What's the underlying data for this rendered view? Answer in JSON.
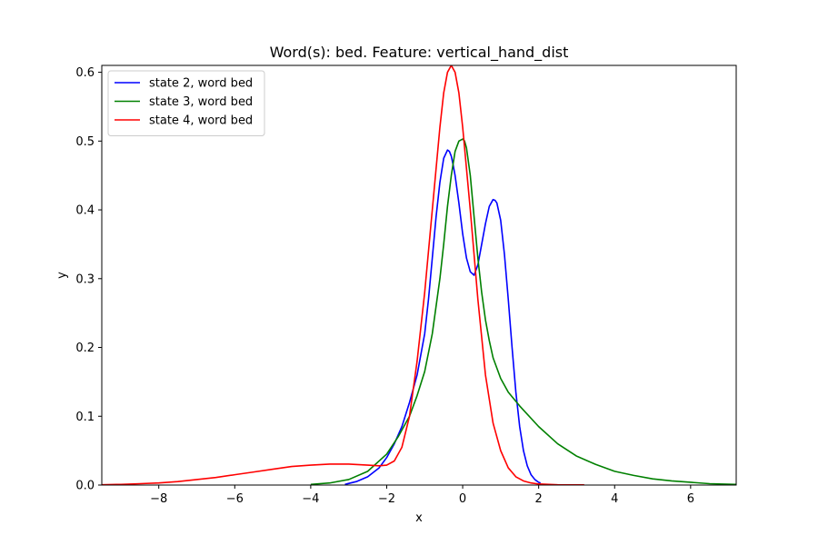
{
  "chart_data": {
    "type": "line",
    "title": "Word(s): bed. Feature: vertical_hand_dist",
    "xlabel": "x",
    "ylabel": "y",
    "xlim": [
      -9.5,
      7.2
    ],
    "ylim": [
      0,
      0.61
    ],
    "xticks": [
      -8,
      -6,
      -4,
      -2,
      0,
      2,
      4,
      6
    ],
    "xtick_labels": [
      "−8",
      "−6",
      "−4",
      "−2",
      "0",
      "2",
      "4",
      "6"
    ],
    "yticks": [
      0.0,
      0.1,
      0.2,
      0.3,
      0.4,
      0.5,
      0.6
    ],
    "ytick_labels": [
      "0.0",
      "0.1",
      "0.2",
      "0.3",
      "0.4",
      "0.5",
      "0.6"
    ],
    "grid": false,
    "legend_position": "top-left",
    "series": [
      {
        "name": "state 2, word bed",
        "color": "#0000ff",
        "x": [
          -3.1,
          -2.8,
          -2.5,
          -2.2,
          -2.0,
          -1.8,
          -1.6,
          -1.4,
          -1.2,
          -1.0,
          -0.9,
          -0.8,
          -0.7,
          -0.6,
          -0.5,
          -0.4,
          -0.35,
          -0.3,
          -0.25,
          -0.2,
          -0.1,
          0.0,
          0.1,
          0.2,
          0.3,
          0.4,
          0.5,
          0.6,
          0.7,
          0.8,
          0.85,
          0.9,
          1.0,
          1.1,
          1.2,
          1.3,
          1.4,
          1.5,
          1.6,
          1.7,
          1.8,
          1.9,
          2.0,
          2.05
        ],
        "y": [
          0.001,
          0.005,
          0.012,
          0.025,
          0.04,
          0.06,
          0.085,
          0.12,
          0.16,
          0.22,
          0.27,
          0.33,
          0.39,
          0.44,
          0.475,
          0.487,
          0.485,
          0.478,
          0.465,
          0.45,
          0.41,
          0.365,
          0.33,
          0.31,
          0.305,
          0.32,
          0.35,
          0.38,
          0.405,
          0.415,
          0.414,
          0.41,
          0.385,
          0.335,
          0.27,
          0.2,
          0.135,
          0.085,
          0.05,
          0.028,
          0.015,
          0.008,
          0.004,
          0.003
        ]
      },
      {
        "name": "state 3, word bed",
        "color": "#008000",
        "x": [
          -4.0,
          -3.5,
          -3.0,
          -2.5,
          -2.0,
          -1.7,
          -1.4,
          -1.2,
          -1.0,
          -0.8,
          -0.6,
          -0.5,
          -0.4,
          -0.3,
          -0.2,
          -0.1,
          0.0,
          0.05,
          0.1,
          0.2,
          0.3,
          0.4,
          0.5,
          0.6,
          0.7,
          0.8,
          1.0,
          1.2,
          1.5,
          2.0,
          2.5,
          3.0,
          3.5,
          4.0,
          4.5,
          5.0,
          5.5,
          6.0,
          6.5,
          7.2
        ],
        "y": [
          0.001,
          0.003,
          0.008,
          0.02,
          0.045,
          0.07,
          0.1,
          0.13,
          0.165,
          0.22,
          0.3,
          0.35,
          0.405,
          0.45,
          0.485,
          0.5,
          0.503,
          0.5,
          0.49,
          0.45,
          0.39,
          0.33,
          0.28,
          0.24,
          0.21,
          0.185,
          0.155,
          0.135,
          0.115,
          0.085,
          0.06,
          0.042,
          0.03,
          0.02,
          0.014,
          0.009,
          0.006,
          0.004,
          0.002,
          0.001
        ]
      },
      {
        "name": "state 4, word bed",
        "color": "#ff0000",
        "x": [
          -9.5,
          -9.0,
          -8.5,
          -8.0,
          -7.5,
          -7.0,
          -6.5,
          -6.0,
          -5.5,
          -5.0,
          -4.5,
          -4.0,
          -3.5,
          -3.0,
          -2.5,
          -2.2,
          -2.0,
          -1.8,
          -1.6,
          -1.4,
          -1.2,
          -1.0,
          -0.8,
          -0.6,
          -0.5,
          -0.4,
          -0.3,
          -0.2,
          -0.1,
          0.0,
          0.2,
          0.4,
          0.6,
          0.8,
          1.0,
          1.2,
          1.4,
          1.6,
          1.8,
          2.0,
          2.5,
          3.2
        ],
        "y": [
          0.0005,
          0.001,
          0.002,
          0.003,
          0.005,
          0.008,
          0.011,
          0.015,
          0.019,
          0.023,
          0.027,
          0.029,
          0.0305,
          0.0305,
          0.029,
          0.028,
          0.029,
          0.035,
          0.055,
          0.1,
          0.18,
          0.28,
          0.4,
          0.52,
          0.57,
          0.6,
          0.61,
          0.6,
          0.57,
          0.52,
          0.4,
          0.27,
          0.16,
          0.09,
          0.05,
          0.025,
          0.012,
          0.006,
          0.003,
          0.0015,
          0.0005,
          0.0002
        ]
      }
    ]
  }
}
